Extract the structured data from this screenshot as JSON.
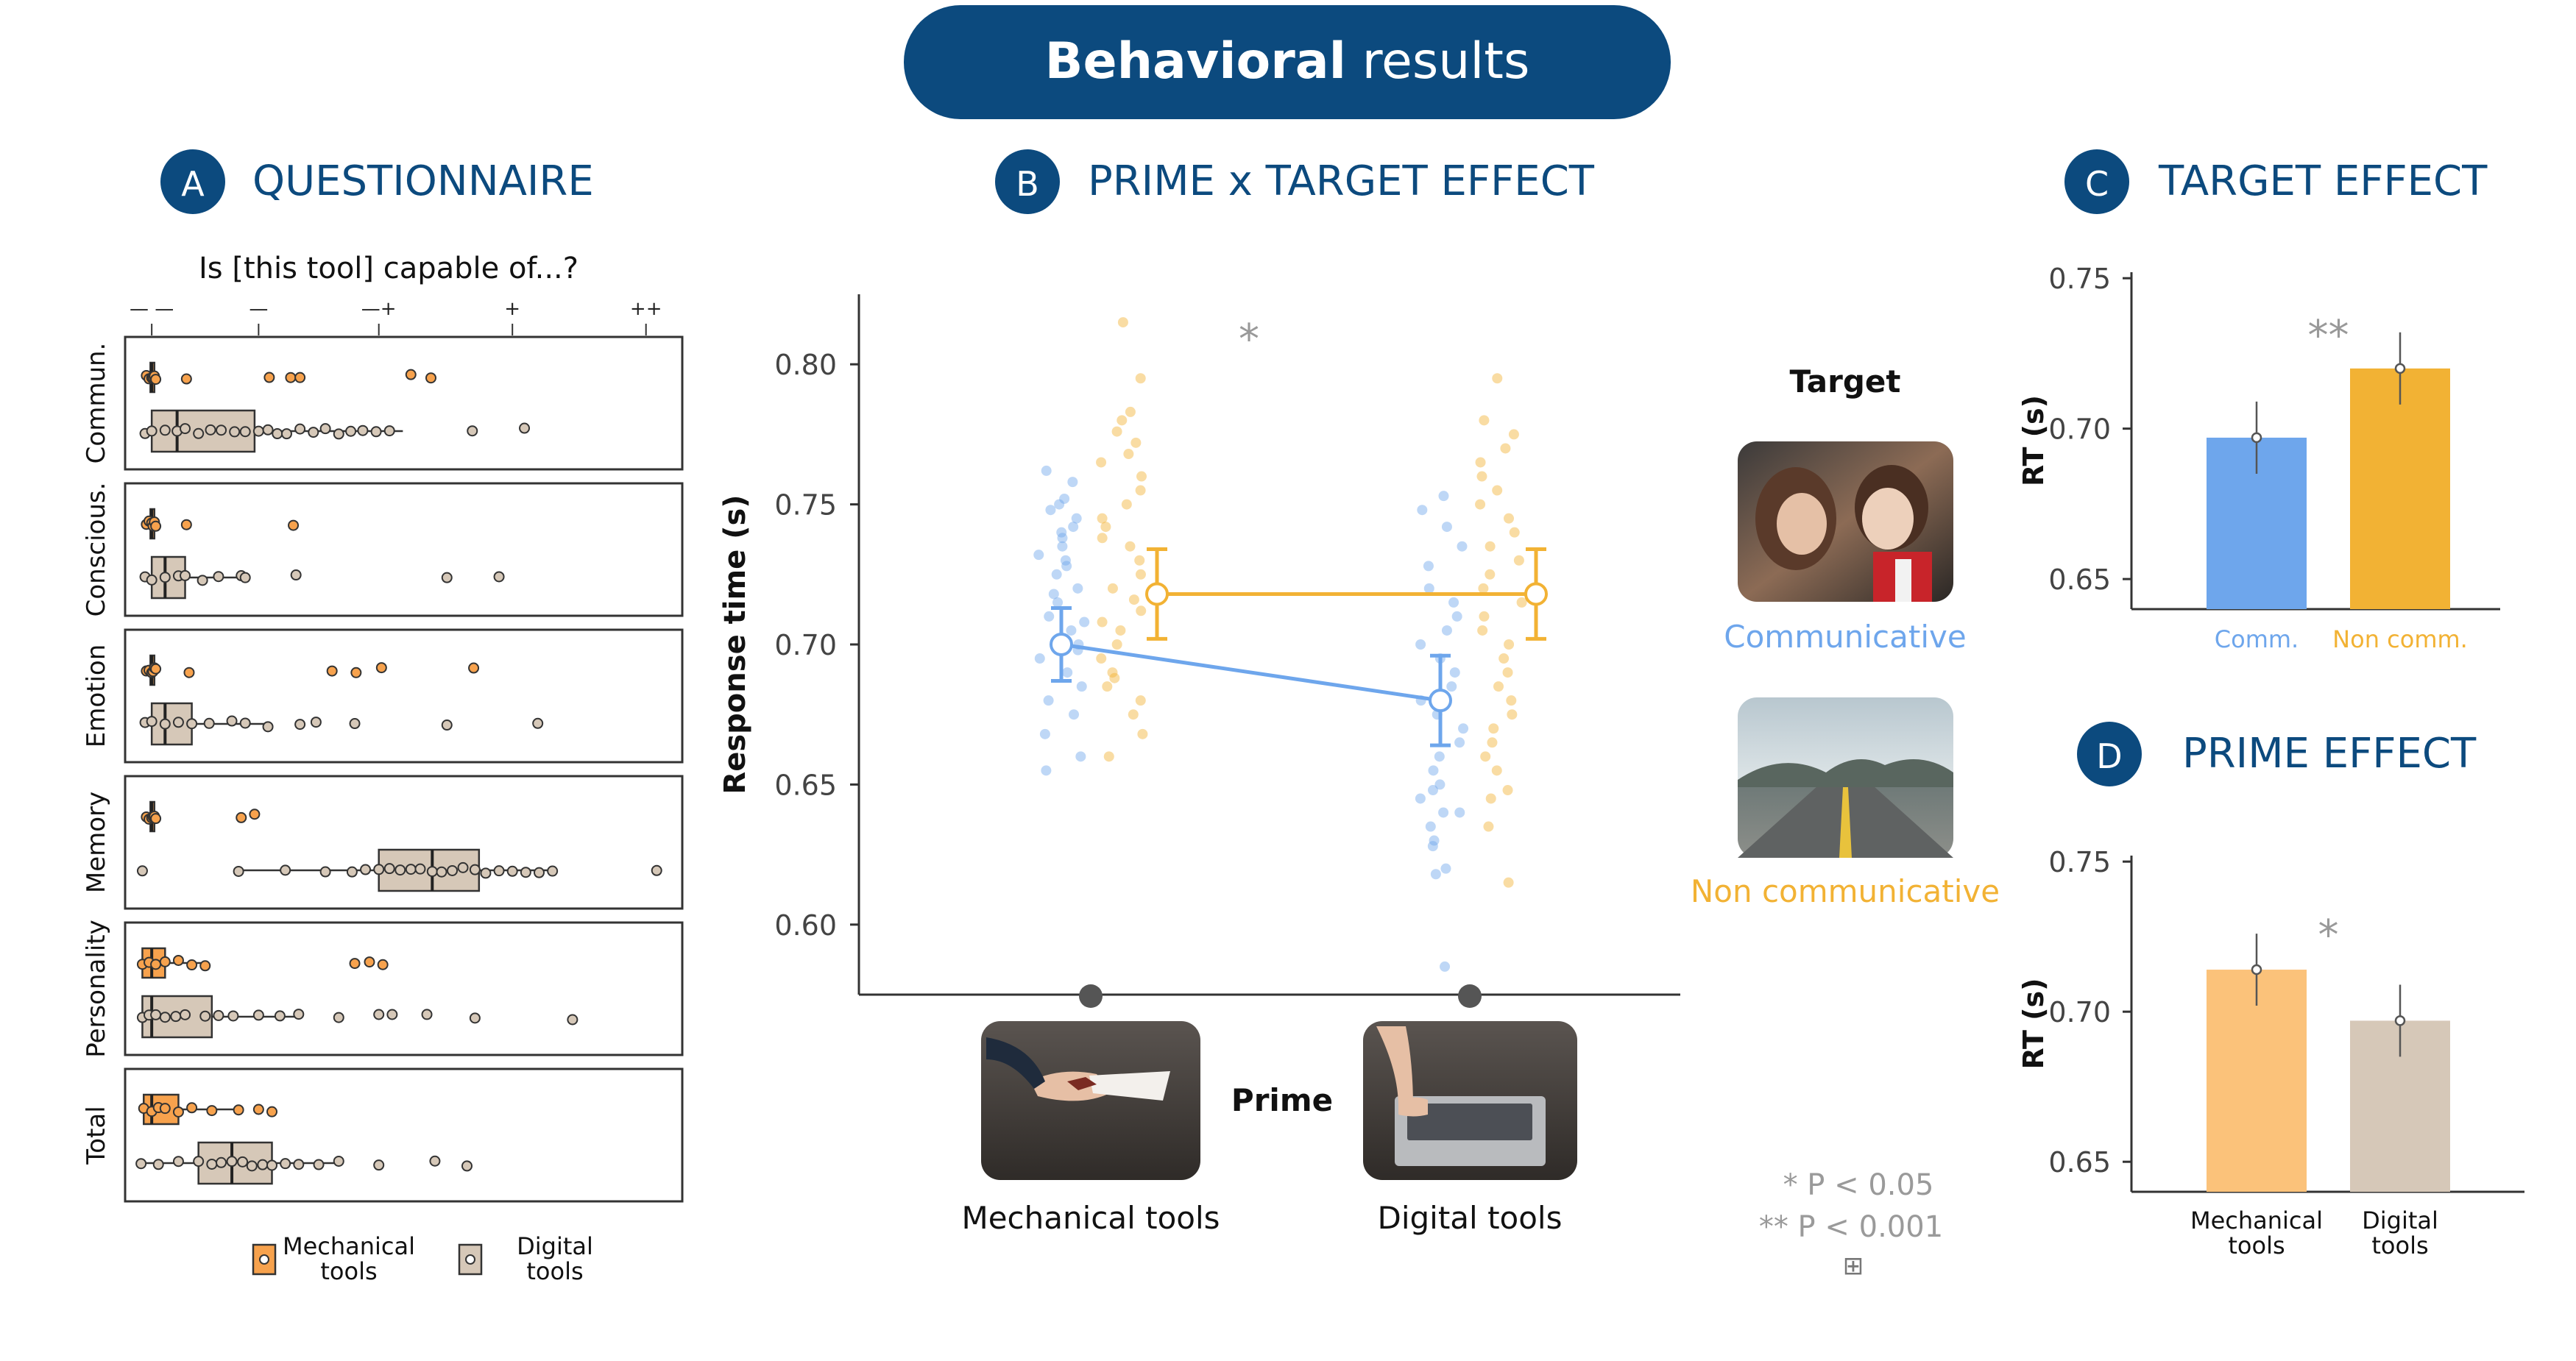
{
  "header": {
    "title_bold": "Behavioral",
    "title_rest": " results",
    "bg_color": "#0c4a7e"
  },
  "colors": {
    "navy": "#0c4a7e",
    "comm_blue": "#6ea6ec",
    "noncomm_orange": "#f2b234",
    "mech_orange": "#f7a24d",
    "mech_light": "#fbc27a",
    "digital_beige": "#d6c8b8",
    "axis": "#333333"
  },
  "panelA": {
    "letter": "A",
    "heading": "QUESTIONNAIRE",
    "question": "Is [this tool] capable of...?",
    "scale": [
      "— —",
      "—",
      "—+",
      "+",
      "++"
    ],
    "rows": [
      {
        "label": "Commun.",
        "mech": {
          "q1": 0.9,
          "med": 1.0,
          "q3": 1.2,
          "whisker": [
            0.6,
            1.3
          ],
          "points": [
            0.6,
            0.8,
            1.0,
            1.1,
            1.2,
            1.3,
            3.6,
            9.8,
            11.4,
            12.1,
            20.4,
            21.9
          ]
        },
        "digital": {
          "q1": 1.0,
          "med": 2.9,
          "q3": 8.7,
          "whisker": [
            0.3,
            19.8
          ],
          "points": [
            0.5,
            1.0,
            2.0,
            2.9,
            3.5,
            4.5,
            5.4,
            6.2,
            7.2,
            8.0,
            9.0,
            9.7,
            10.4,
            11.1,
            12.1,
            13.1,
            14.0,
            15.0,
            15.9,
            16.8,
            17.8,
            18.8,
            25.0,
            28.9
          ]
        }
      },
      {
        "label": "Conscious.",
        "mech": {
          "q1": 0.9,
          "med": 1.0,
          "q3": 1.2,
          "whisker": [
            0.6,
            1.3
          ],
          "points": [
            0.6,
            0.8,
            1.0,
            1.1,
            1.2,
            1.3,
            3.6,
            11.6
          ]
        },
        "digital": {
          "q1": 1.0,
          "med": 2.0,
          "q3": 3.5,
          "whisker": [
            0.3,
            8.0
          ],
          "points": [
            0.5,
            1.0,
            2.0,
            3.0,
            3.5,
            4.8,
            6.0,
            7.7,
            8.0,
            11.8,
            23.1,
            27.0
          ]
        }
      },
      {
        "label": "Emotion",
        "mech": {
          "q1": 0.9,
          "med": 1.0,
          "q3": 1.2,
          "whisker": [
            0.6,
            1.3
          ],
          "points": [
            0.6,
            0.8,
            1.0,
            1.1,
            1.2,
            1.3,
            3.8,
            14.5,
            16.3,
            18.2,
            25.1
          ]
        },
        "digital": {
          "q1": 1.0,
          "med": 2.0,
          "q3": 4.0,
          "whisker": [
            0.3,
            9.7
          ],
          "points": [
            0.5,
            1.0,
            2.0,
            3.0,
            4.0,
            5.3,
            7.0,
            8.0,
            9.7,
            12.1,
            13.3,
            16.2,
            23.1,
            29.9
          ]
        }
      },
      {
        "label": "Memory",
        "mech": {
          "q1": 0.9,
          "med": 1.0,
          "q3": 1.2,
          "whisker": [
            0.6,
            1.3
          ],
          "points": [
            0.6,
            0.8,
            1.0,
            1.1,
            1.2,
            1.3,
            7.7,
            8.7
          ]
        },
        "digital": {
          "q1": 18.0,
          "med": 22.0,
          "q3": 25.5,
          "whisker": [
            7.5,
            31.0
          ],
          "points": [
            0.3,
            7.5,
            11.0,
            14.0,
            16.0,
            17.0,
            18.0,
            18.8,
            19.6,
            20.4,
            21.1,
            22.0,
            22.7,
            23.5,
            24.3,
            25.2,
            26.0,
            27.0,
            28.0,
            29.0,
            30.0,
            31.0,
            38.8
          ]
        }
      },
      {
        "label": "Personality",
        "mech": {
          "q1": 0.3,
          "med": 1.0,
          "q3": 2.0,
          "whisker": [
            0.2,
            5.0
          ],
          "points": [
            0.3,
            0.8,
            1.3,
            2.0,
            3.0,
            4.0,
            5.0,
            16.2,
            17.3,
            18.3
          ]
        },
        "digital": {
          "q1": 0.3,
          "med": 1.0,
          "q3": 5.5,
          "whisker": [
            0.2,
            12.0
          ],
          "points": [
            0.3,
            0.8,
            1.3,
            2.0,
            2.8,
            3.5,
            5.0,
            6.0,
            7.1,
            9.0,
            10.6,
            12.0,
            15.0,
            18.0,
            19.0,
            21.6,
            25.2,
            32.5
          ]
        }
      },
      {
        "label": "Total",
        "mech": {
          "q1": 0.4,
          "med": 1.0,
          "q3": 3.0,
          "whisker": [
            0.2,
            7.5
          ],
          "points": [
            0.4,
            1.0,
            1.5,
            2.0,
            3.0,
            4.0,
            5.5,
            7.5,
            9.0,
            10.0
          ]
        },
        "digital": {
          "q1": 4.5,
          "med": 7.0,
          "q3": 10.0,
          "whisker": [
            0.2,
            15.0
          ],
          "points": [
            0.2,
            1.5,
            3.0,
            4.5,
            5.5,
            6.2,
            7.0,
            7.8,
            8.5,
            9.3,
            10.0,
            11.0,
            12.0,
            13.5,
            15.0,
            18.0,
            22.2,
            24.6
          ]
        }
      }
    ],
    "legend": {
      "mech": "Mechanical\ntools",
      "digital": "Digital\ntools"
    }
  },
  "panelB": {
    "letter": "B",
    "heading": "PRIME x TARGET EFFECT",
    "ylabel": "Response time (s)",
    "yticks": [
      "0.80",
      "0.75",
      "0.70",
      "0.65",
      "0.60"
    ],
    "ylim": [
      0.575,
      0.825
    ],
    "star": "*",
    "xlabels": [
      "Mechanical tools",
      "Digital tools"
    ],
    "prime_label": "Prime",
    "target_title": "Target",
    "target_comm": "Communicative",
    "target_noncomm": "Non communicative",
    "footnote": [
      "* P < 0.05",
      "** P < 0.001",
      "⊞"
    ]
  },
  "panelC": {
    "letter": "C",
    "heading": "TARGET EFFECT",
    "ylabel": "RT (s)",
    "star": "**"
  },
  "panelD": {
    "letter": "D",
    "heading": "PRIME EFFECT",
    "ylabel": "RT (s)",
    "star": "*"
  },
  "chart_data": [
    {
      "type": "line",
      "title": "PRIME x TARGET EFFECT",
      "xlabel": "Prime",
      "ylabel": "Response time (s)",
      "categories": [
        "Mechanical tools",
        "Digital tools"
      ],
      "ylim": [
        0.575,
        0.825
      ],
      "series": [
        {
          "name": "Communicative",
          "values": [
            0.7,
            0.68
          ],
          "err": [
            0.013,
            0.016
          ],
          "points": [
            0.762,
            0.758,
            0.752,
            0.75,
            0.748,
            0.745,
            0.742,
            0.74,
            0.738,
            0.735,
            0.732,
            0.73,
            0.728,
            0.725,
            0.72,
            0.718,
            0.715,
            0.71,
            0.708,
            0.705,
            0.7,
            0.698,
            0.695,
            0.69,
            0.685,
            0.68,
            0.675,
            0.668,
            0.66,
            0.655,
            0.648,
            0.64,
            0.63,
            0.618,
            0.753,
            0.748,
            0.742,
            0.735,
            0.728,
            0.72,
            0.715,
            0.71,
            0.705,
            0.7,
            0.695,
            0.69,
            0.685,
            0.68,
            0.675,
            0.67,
            0.665,
            0.66,
            0.655,
            0.65,
            0.645,
            0.64,
            0.635,
            0.628,
            0.62,
            0.585
          ]
        },
        {
          "name": "Non communicative",
          "values": [
            0.718,
            0.718
          ],
          "err": [
            0.016,
            0.016
          ],
          "points": [
            0.815,
            0.795,
            0.783,
            0.78,
            0.776,
            0.772,
            0.768,
            0.765,
            0.76,
            0.755,
            0.75,
            0.745,
            0.742,
            0.738,
            0.735,
            0.73,
            0.725,
            0.72,
            0.716,
            0.712,
            0.708,
            0.705,
            0.7,
            0.695,
            0.69,
            0.688,
            0.685,
            0.68,
            0.675,
            0.668,
            0.66,
            0.648,
            0.795,
            0.78,
            0.775,
            0.77,
            0.765,
            0.76,
            0.755,
            0.75,
            0.745,
            0.74,
            0.735,
            0.73,
            0.725,
            0.72,
            0.715,
            0.71,
            0.705,
            0.7,
            0.695,
            0.69,
            0.685,
            0.68,
            0.675,
            0.67,
            0.665,
            0.66,
            0.655,
            0.645,
            0.635,
            0.615
          ]
        }
      ]
    },
    {
      "type": "bar",
      "title": "TARGET EFFECT",
      "ylabel": "RT (s)",
      "categories": [
        "Comm.",
        "Non comm."
      ],
      "values": [
        0.697,
        0.72
      ],
      "err": [
        0.012,
        0.012
      ],
      "yticks": [
        "0.75",
        "0.70",
        "0.65"
      ],
      "ylim": [
        0.64,
        0.752
      ]
    },
    {
      "type": "bar",
      "title": "PRIME EFFECT",
      "ylabel": "RT (s)",
      "categories": [
        "Mechanical\ntools",
        "Digital\ntools"
      ],
      "values": [
        0.714,
        0.697
      ],
      "err": [
        0.012,
        0.012
      ],
      "yticks": [
        "0.75",
        "0.70",
        "0.65"
      ],
      "ylim": [
        0.64,
        0.752
      ]
    }
  ]
}
